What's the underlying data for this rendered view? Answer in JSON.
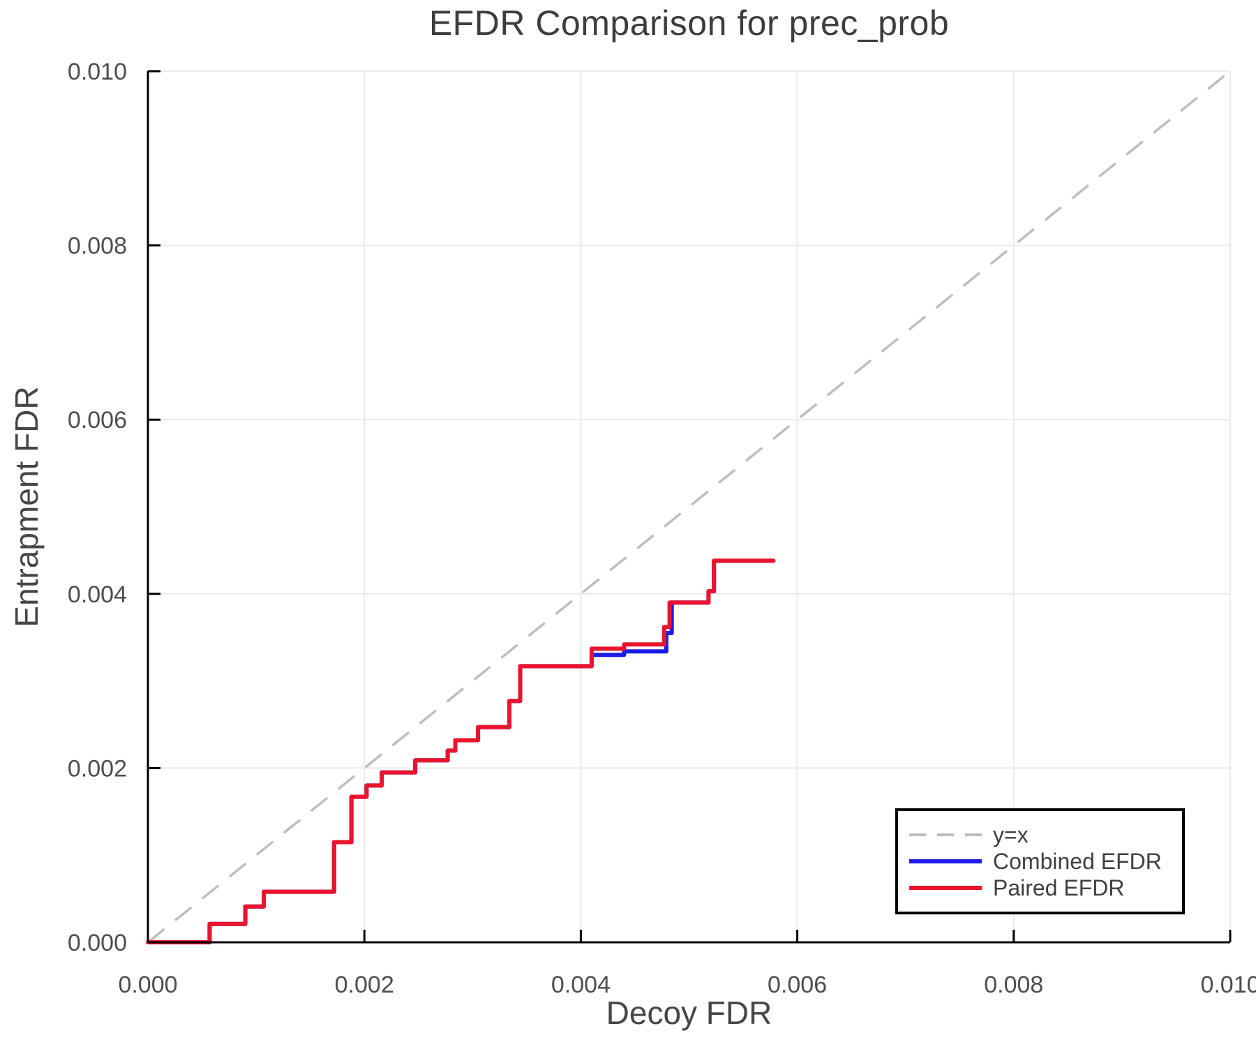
{
  "title": "EFDR Comparison for prec_prob",
  "axes": {
    "xlabel": "Decoy FDR",
    "ylabel": "Entrapment FDR",
    "x_tick_labels": [
      "0.000",
      "0.002",
      "0.004",
      "0.006",
      "0.008",
      "0.010"
    ],
    "y_tick_labels": [
      "0.000",
      "0.002",
      "0.004",
      "0.006",
      "0.008",
      "0.010"
    ]
  },
  "legend": {
    "items": [
      {
        "label": "y=x",
        "style": "dashed",
        "color": "#bdbdbd"
      },
      {
        "label": "Combined EFDR",
        "style": "solid",
        "color": "#1c1ce6"
      },
      {
        "label": "Paired EFDR",
        "style": "solid",
        "color": "#e8152d"
      }
    ],
    "position": "lower right"
  },
  "chart_data": {
    "type": "line",
    "title": "EFDR Comparison for prec_prob",
    "xlabel": "Decoy FDR",
    "ylabel": "Entrapment FDR",
    "xlim": [
      0.0,
      0.01
    ],
    "ylim": [
      0.0,
      0.01
    ],
    "x_ticks": [
      0.0,
      0.002,
      0.004,
      0.006,
      0.008,
      0.01
    ],
    "y_ticks": [
      0.0,
      0.002,
      0.004,
      0.006,
      0.008,
      0.01
    ],
    "grid": true,
    "legend_position": "lower right",
    "series": [
      {
        "name": "y=x",
        "style": "dashed",
        "color": "#bdbdbd",
        "points": [
          [
            0.0,
            0.0
          ],
          [
            0.01,
            0.01
          ]
        ]
      },
      {
        "name": "Combined EFDR",
        "style": "solid",
        "color": "#1c1ce6",
        "points": [
          [
            0.0,
            0.0
          ],
          [
            0.00057,
            0.0
          ],
          [
            0.00057,
            0.00021
          ],
          [
            0.0009,
            0.00021
          ],
          [
            0.0009,
            0.00041
          ],
          [
            0.00107,
            0.00041
          ],
          [
            0.00107,
            0.00058
          ],
          [
            0.00172,
            0.00058
          ],
          [
            0.00172,
            0.00115
          ],
          [
            0.00188,
            0.00115
          ],
          [
            0.00188,
            0.00167
          ],
          [
            0.00202,
            0.00167
          ],
          [
            0.00202,
            0.0018
          ],
          [
            0.00216,
            0.0018
          ],
          [
            0.00216,
            0.00195
          ],
          [
            0.00247,
            0.00195
          ],
          [
            0.00247,
            0.00209
          ],
          [
            0.00277,
            0.00209
          ],
          [
            0.00277,
            0.0022
          ],
          [
            0.00284,
            0.0022
          ],
          [
            0.00284,
            0.00232
          ],
          [
            0.00305,
            0.00232
          ],
          [
            0.00305,
            0.00247
          ],
          [
            0.00334,
            0.00247
          ],
          [
            0.00334,
            0.00277
          ],
          [
            0.00344,
            0.00277
          ],
          [
            0.00344,
            0.00317
          ],
          [
            0.0041,
            0.00317
          ],
          [
            0.0041,
            0.0033
          ],
          [
            0.0044,
            0.0033
          ],
          [
            0.0044,
            0.00334
          ],
          [
            0.00479,
            0.00334
          ],
          [
            0.00479,
            0.00355
          ],
          [
            0.00484,
            0.00355
          ],
          [
            0.00484,
            0.0039
          ],
          [
            0.00518,
            0.0039
          ],
          [
            0.00518,
            0.00403
          ],
          [
            0.00523,
            0.00403
          ],
          [
            0.00523,
            0.00438
          ],
          [
            0.00578,
            0.00438
          ]
        ]
      },
      {
        "name": "Paired EFDR",
        "style": "solid",
        "color": "#e8152d",
        "points": [
          [
            0.0,
            0.0
          ],
          [
            0.00057,
            0.0
          ],
          [
            0.00057,
            0.00021
          ],
          [
            0.0009,
            0.00021
          ],
          [
            0.0009,
            0.00041
          ],
          [
            0.00107,
            0.00041
          ],
          [
            0.00107,
            0.00058
          ],
          [
            0.00172,
            0.00058
          ],
          [
            0.00172,
            0.00115
          ],
          [
            0.00188,
            0.00115
          ],
          [
            0.00188,
            0.00167
          ],
          [
            0.00202,
            0.00167
          ],
          [
            0.00202,
            0.0018
          ],
          [
            0.00216,
            0.0018
          ],
          [
            0.00216,
            0.00195
          ],
          [
            0.00247,
            0.00195
          ],
          [
            0.00247,
            0.00209
          ],
          [
            0.00277,
            0.00209
          ],
          [
            0.00277,
            0.0022
          ],
          [
            0.00284,
            0.0022
          ],
          [
            0.00284,
            0.00232
          ],
          [
            0.00305,
            0.00232
          ],
          [
            0.00305,
            0.00247
          ],
          [
            0.00334,
            0.00247
          ],
          [
            0.00334,
            0.00277
          ],
          [
            0.00344,
            0.00277
          ],
          [
            0.00344,
            0.00317
          ],
          [
            0.0041,
            0.00317
          ],
          [
            0.0041,
            0.00337
          ],
          [
            0.0044,
            0.00337
          ],
          [
            0.0044,
            0.00342
          ],
          [
            0.00477,
            0.00342
          ],
          [
            0.00477,
            0.00362
          ],
          [
            0.00482,
            0.00362
          ],
          [
            0.00482,
            0.0039
          ],
          [
            0.00518,
            0.0039
          ],
          [
            0.00518,
            0.00403
          ],
          [
            0.00523,
            0.00403
          ],
          [
            0.00523,
            0.00438
          ],
          [
            0.00578,
            0.00438
          ]
        ]
      }
    ]
  }
}
